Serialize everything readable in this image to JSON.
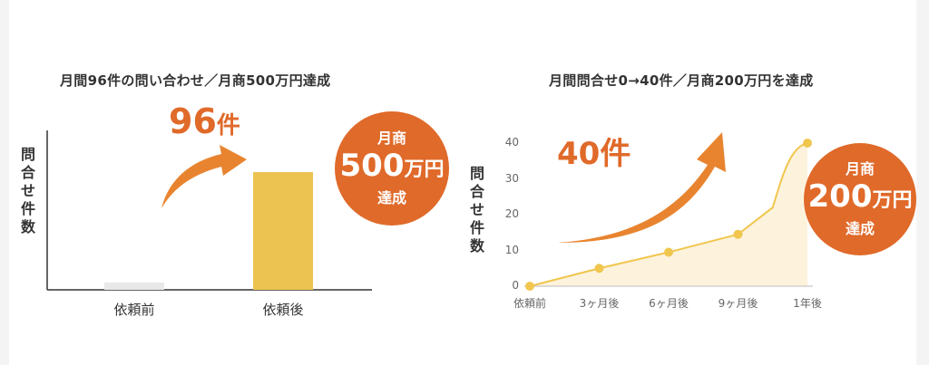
{
  "colors": {
    "accent": "#e06a2a",
    "bar_before": "#e8e8e8",
    "bar_after": "#ecc350",
    "line": "#f0c64e",
    "area": "#fdf3dd"
  },
  "left": {
    "title": "月間96件の問い合わせ／月商500万円達成",
    "ylabel": "問合せ件数",
    "callout_num": "96",
    "callout_unit": "件",
    "badge": {
      "line1": "月商",
      "big": "500",
      "small": "万円",
      "line3": "達成"
    }
  },
  "right": {
    "title": "月間問合せ0→40件／月商200万円を達成",
    "ylabel": "問合せ件数",
    "callout": "40件",
    "badge": {
      "line1": "月商",
      "big": "200",
      "small": "万円",
      "line3": "達成"
    }
  },
  "chart_data": [
    {
      "type": "bar",
      "title": "月間96件の問い合わせ／月商500万円達成",
      "ylabel": "問合せ件数",
      "categories": [
        "依頼前",
        "依頼後"
      ],
      "values": [
        6,
        96
      ],
      "ylim": [
        0,
        130
      ],
      "grid": false
    },
    {
      "type": "area",
      "title": "月間問合せ0→40件／月商200万円を達成",
      "ylabel": "問合せ件数",
      "x": [
        "依頼前",
        "3ヶ月後",
        "6ヶ月後",
        "9ヶ月後",
        "1年後"
      ],
      "xticks": [
        "依頼前",
        "3ヶ月後",
        "6ヶ月後",
        "9ヶ月後",
        "1年後"
      ],
      "points": [
        [
          0,
          0
        ],
        [
          3,
          5
        ],
        [
          6,
          9.5
        ],
        [
          9,
          14.5
        ],
        [
          12,
          40
        ]
      ],
      "yticks": [
        0,
        10,
        20,
        30,
        40
      ],
      "ylim": [
        0,
        40
      ],
      "xlim": [
        0,
        12
      ],
      "grid": false
    }
  ]
}
